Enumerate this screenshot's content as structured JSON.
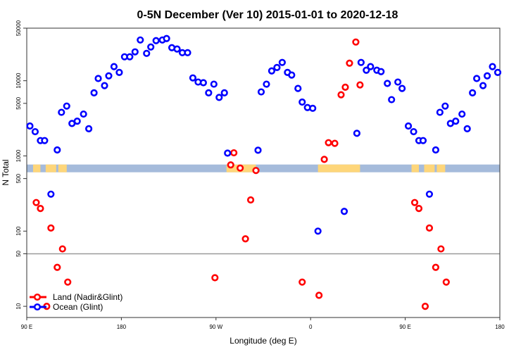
{
  "chart_data": {
    "type": "scatter",
    "title": "0-5N December (Ver 10)   2015-01-01 to 2020-12-18",
    "xlabel": "Longitude (deg E)",
    "ylabel": "N Total",
    "y_scale": "log",
    "ylim": [
      7.1,
      50000
    ],
    "x_start_lon": 90,
    "x_span_deg": 450,
    "x_ticks": [
      {
        "lon": 90,
        "label": "90 E"
      },
      {
        "lon": 180,
        "label": "180"
      },
      {
        "lon": -90,
        "label": "90 W"
      },
      {
        "lon": 0,
        "label": "0"
      },
      {
        "lon": 90,
        "label": "90 E"
      },
      {
        "lon": 180,
        "label": "180"
      }
    ],
    "y_ticks": [
      {
        "value": 50000,
        "label": "50000"
      },
      {
        "value": 10000,
        "label": "10000"
      },
      {
        "value": 5000,
        "label": "5000"
      },
      {
        "value": 1000,
        "label": "1000"
      },
      {
        "value": 500,
        "label": "500"
      },
      {
        "value": 100,
        "label": "100"
      },
      {
        "value": 50,
        "label": "50"
      },
      {
        "value": 10,
        "label": "10"
      }
    ],
    "reference_line": 50,
    "grid": false,
    "legend_placement": "bottom-left",
    "surface_band": {
      "ocean_color": "#a5bbdb",
      "land_color": "#fed67a",
      "land_lon_ranges": [
        [
          96,
          103
        ],
        [
          108,
          118
        ],
        [
          120,
          128
        ],
        [
          -80,
          -52
        ],
        [
          7,
          47
        ]
      ]
    },
    "series": [
      {
        "name": "Land (Nadir&Glint)",
        "color": "#ff0000",
        "points": [
          [
            99,
            240
          ],
          [
            103,
            200
          ],
          [
            109,
            10
          ],
          [
            113,
            110
          ],
          [
            119,
            33
          ],
          [
            124,
            58
          ],
          [
            129,
            21
          ],
          [
            -91,
            24
          ],
          [
            -76,
            760
          ],
          [
            -73,
            1100
          ],
          [
            -67,
            690
          ],
          [
            -62,
            79
          ],
          [
            -57,
            260
          ],
          [
            -52,
            640
          ],
          [
            -8,
            21
          ],
          [
            8,
            14
          ],
          [
            13,
            900
          ],
          [
            17,
            1500
          ],
          [
            23,
            1470
          ],
          [
            29,
            6500
          ],
          [
            33,
            8200
          ],
          [
            37,
            17100
          ],
          [
            43,
            32700
          ],
          [
            47,
            8800
          ]
        ]
      },
      {
        "name": "Ocean (Glint)",
        "color": "#0000ff",
        "points": [
          [
            93,
            2500
          ],
          [
            98,
            2100
          ],
          [
            103,
            1600
          ],
          [
            107,
            1600
          ],
          [
            113,
            310
          ],
          [
            119,
            1200
          ],
          [
            123,
            3800
          ],
          [
            128,
            4600
          ],
          [
            133,
            2700
          ],
          [
            138,
            2900
          ],
          [
            144,
            3600
          ],
          [
            149,
            2300
          ],
          [
            154,
            6900
          ],
          [
            158,
            10700
          ],
          [
            164,
            8600
          ],
          [
            168,
            11600
          ],
          [
            173,
            15400
          ],
          [
            178,
            12900
          ],
          [
            -177,
            20800
          ],
          [
            -172,
            20800
          ],
          [
            -167,
            24200
          ],
          [
            -162,
            34800
          ],
          [
            -156,
            23100
          ],
          [
            -152,
            28100
          ],
          [
            -147,
            34100
          ],
          [
            -141,
            34800
          ],
          [
            -137,
            36400
          ],
          [
            -132,
            27500
          ],
          [
            -127,
            26400
          ],
          [
            -122,
            23600
          ],
          [
            -117,
            23600
          ],
          [
            -112,
            10900
          ],
          [
            -107,
            9600
          ],
          [
            -102,
            9400
          ],
          [
            -97,
            6900
          ],
          [
            -92,
            9000
          ],
          [
            -87,
            6000
          ],
          [
            -82,
            6900
          ],
          [
            -79,
            1090
          ],
          [
            -50,
            1190
          ],
          [
            -47,
            7100
          ],
          [
            -42,
            9000
          ],
          [
            -37,
            13500
          ],
          [
            -32,
            15000
          ],
          [
            -27,
            17500
          ],
          [
            -22,
            12900
          ],
          [
            -18,
            11900
          ],
          [
            -12,
            7900
          ],
          [
            -8,
            5200
          ],
          [
            -3,
            4400
          ],
          [
            2,
            4300
          ],
          [
            7,
            100
          ],
          [
            32,
            183
          ],
          [
            44,
            2000
          ],
          [
            48,
            17500
          ],
          [
            53,
            13800
          ],
          [
            57,
            15400
          ],
          [
            63,
            13800
          ],
          [
            67,
            13200
          ],
          [
            73,
            9200
          ],
          [
            77,
            5600
          ],
          [
            83,
            9600
          ],
          [
            87,
            7900
          ]
        ]
      }
    ]
  }
}
